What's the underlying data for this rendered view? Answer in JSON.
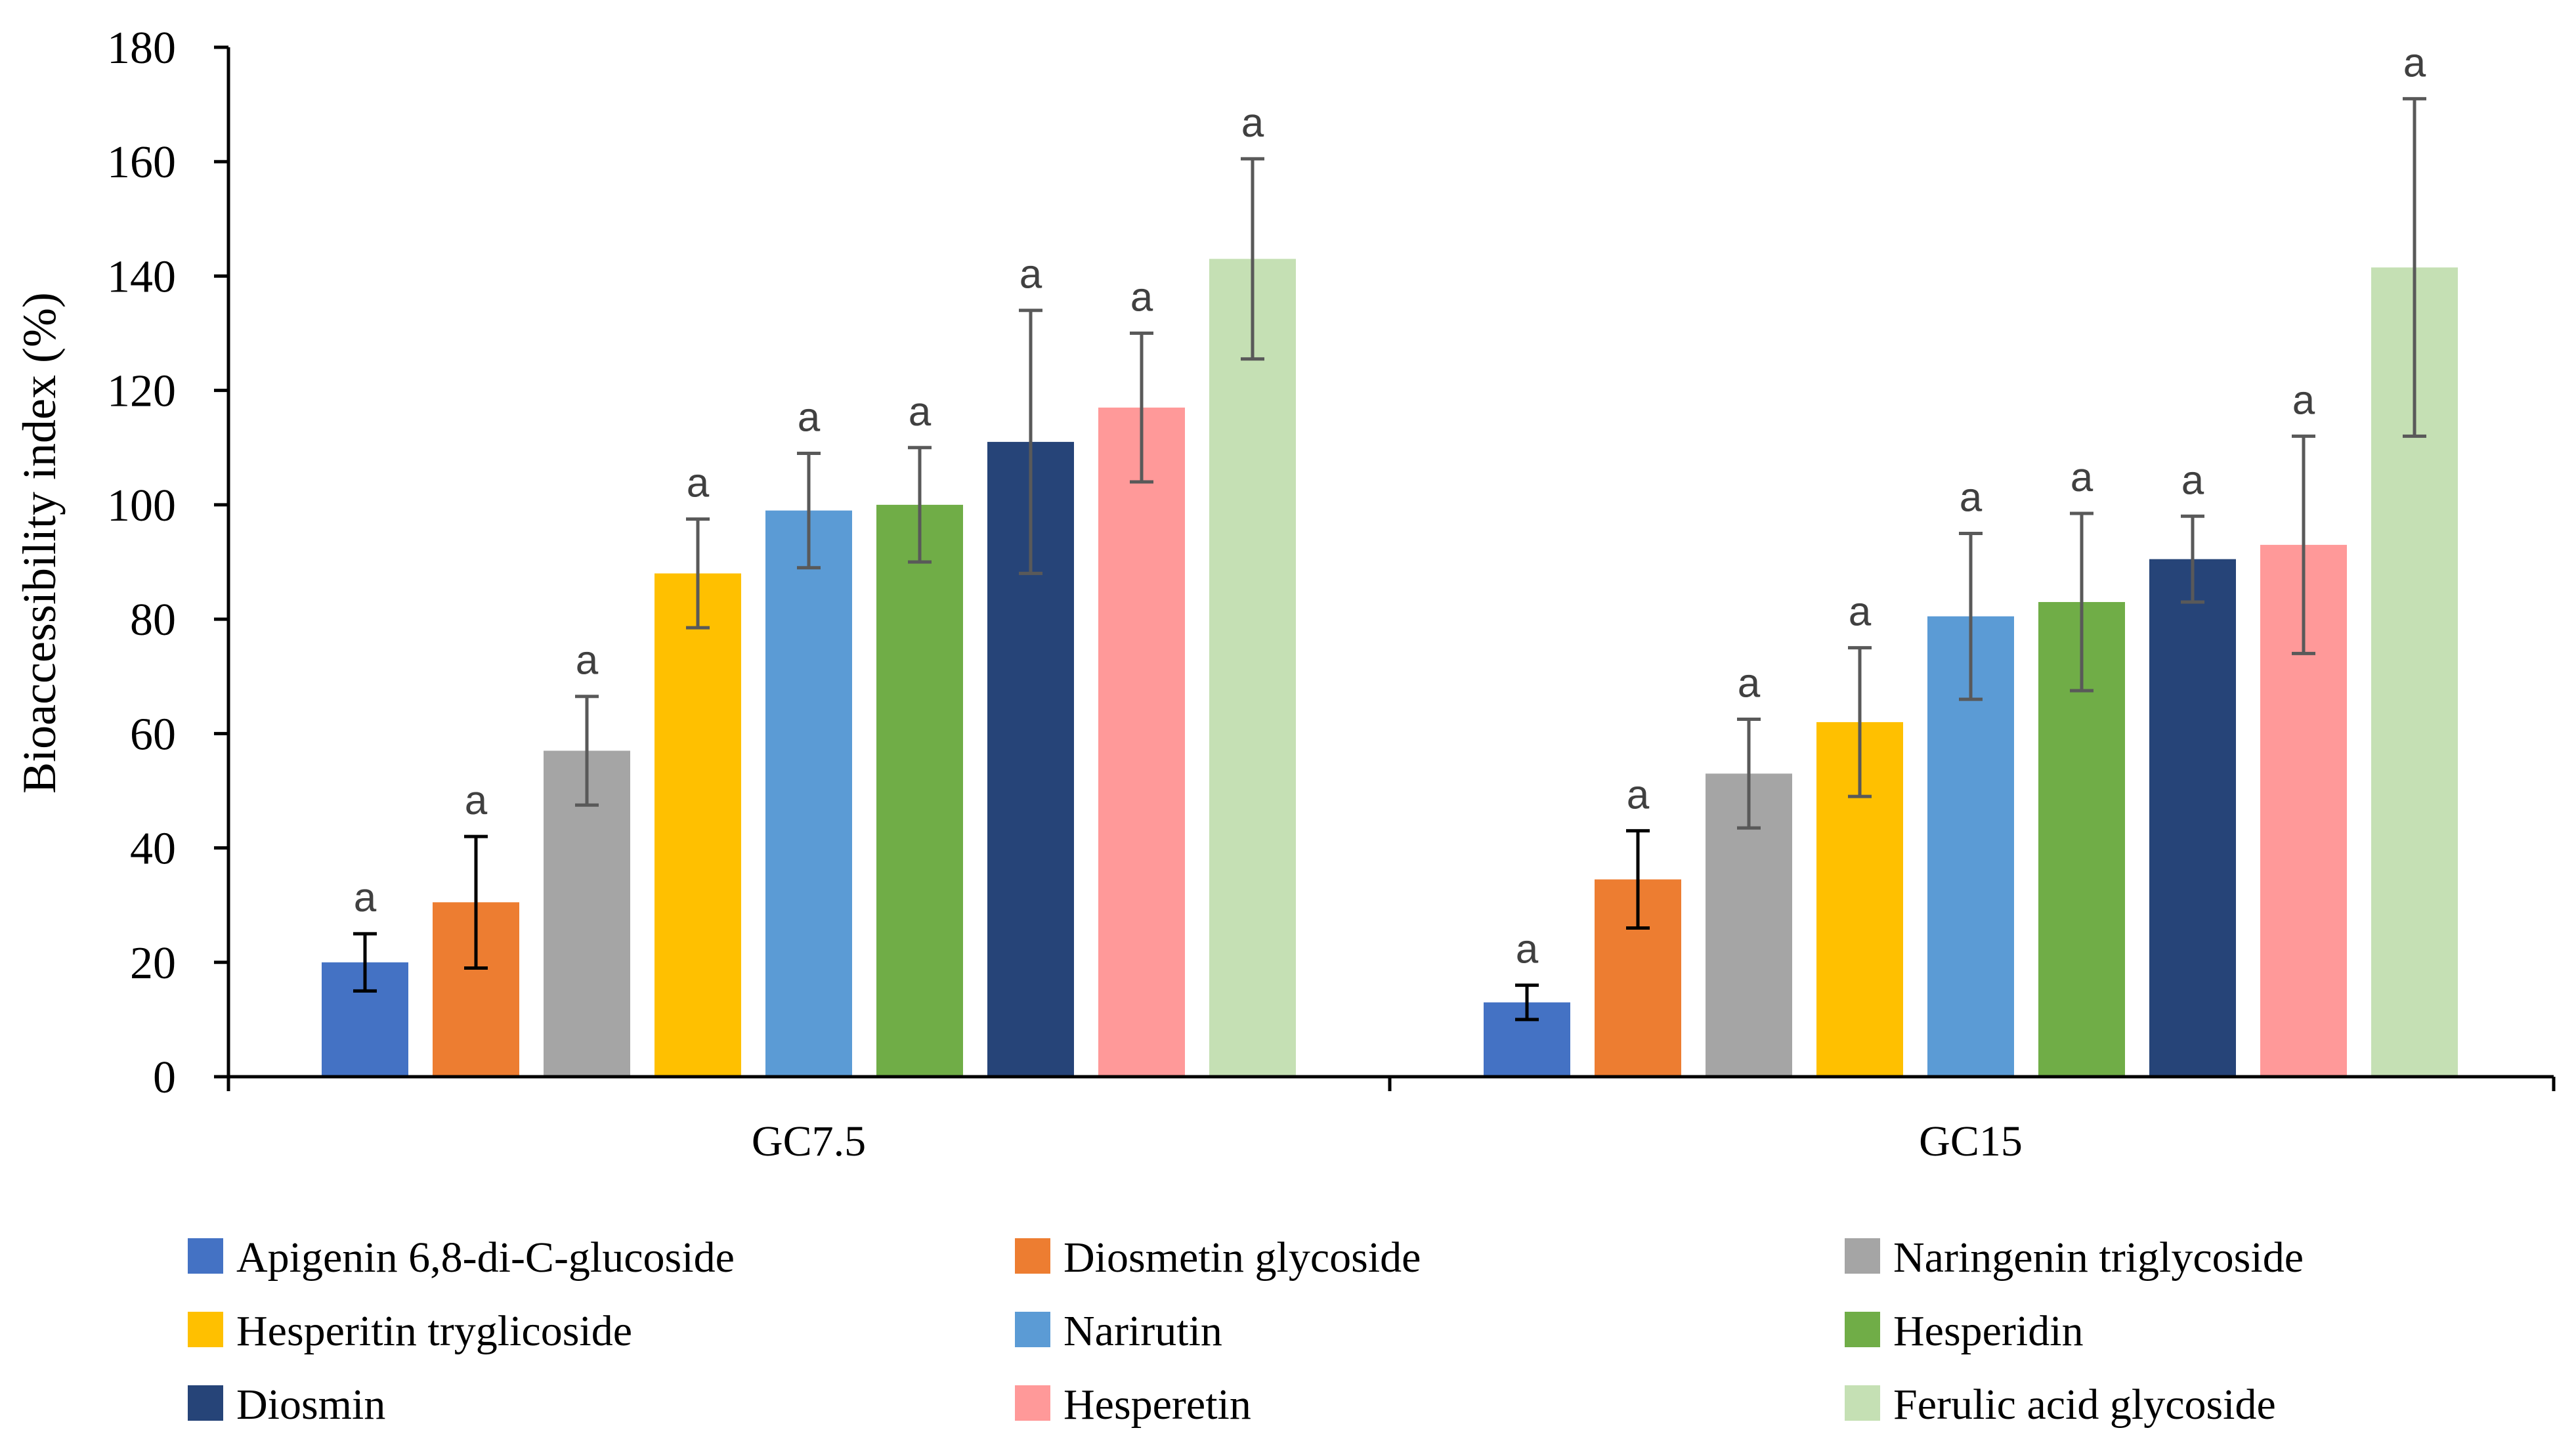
{
  "chart_data": {
    "type": "bar",
    "title": "",
    "xlabel": "",
    "ylabel": "Bioaccessibility index (%)",
    "ylim": [
      0,
      180
    ],
    "yticks": [
      0,
      20,
      40,
      60,
      80,
      100,
      120,
      140,
      160,
      180
    ],
    "grid": false,
    "legend_position": "bottom",
    "categories": [
      "GC7.5",
      "GC15"
    ],
    "series": [
      {
        "name": "Apigenin 6,8-di-C-glucoside",
        "color": "#4472C4",
        "values": [
          20,
          13
        ],
        "errors": [
          5,
          3
        ],
        "significance": [
          "a",
          "a"
        ],
        "error_color": "#000000"
      },
      {
        "name": "Diosmetin glycoside",
        "color": "#ED7D31",
        "values": [
          30.5,
          34.5
        ],
        "errors": [
          11.5,
          8.5
        ],
        "significance": [
          "a",
          "a"
        ],
        "error_color": "#000000"
      },
      {
        "name": "Naringenin triglycoside",
        "color": "#A5A5A5",
        "values": [
          57,
          53
        ],
        "errors": [
          9.5,
          9.5
        ],
        "significance": [
          "a",
          "a"
        ],
        "error_color": "#595959"
      },
      {
        "name": "Hesperitin tryglicoside",
        "color": "#FFC000",
        "values": [
          88,
          62
        ],
        "errors": [
          9.5,
          13
        ],
        "significance": [
          "a",
          "a"
        ],
        "error_color": "#595959"
      },
      {
        "name": "Narirutin",
        "color": "#5B9BD5",
        "values": [
          99,
          80.5
        ],
        "errors": [
          10,
          14.5
        ],
        "significance": [
          "a",
          "a"
        ],
        "error_color": "#595959"
      },
      {
        "name": "Hesperidin",
        "color": "#70AD47",
        "values": [
          100,
          83
        ],
        "errors": [
          10,
          15.5
        ],
        "significance": [
          "a",
          "a"
        ],
        "error_color": "#595959"
      },
      {
        "name": "Diosmin",
        "color": "#264478",
        "values": [
          111,
          90.5
        ],
        "errors": [
          23,
          7.5
        ],
        "significance": [
          "a",
          "a"
        ],
        "error_color": "#595959"
      },
      {
        "name": "Hesperetin",
        "color": "#FF9999",
        "values": [
          117,
          93
        ],
        "errors": [
          13,
          19
        ],
        "significance": [
          "a",
          "a"
        ],
        "error_color": "#595959"
      },
      {
        "name": "Ferulic acid glycoside",
        "color": "#C5E0B4",
        "values": [
          143,
          141.5
        ],
        "errors": [
          17.5,
          29.5
        ],
        "significance": [
          "a",
          "a"
        ],
        "error_color": "#595959"
      }
    ]
  }
}
